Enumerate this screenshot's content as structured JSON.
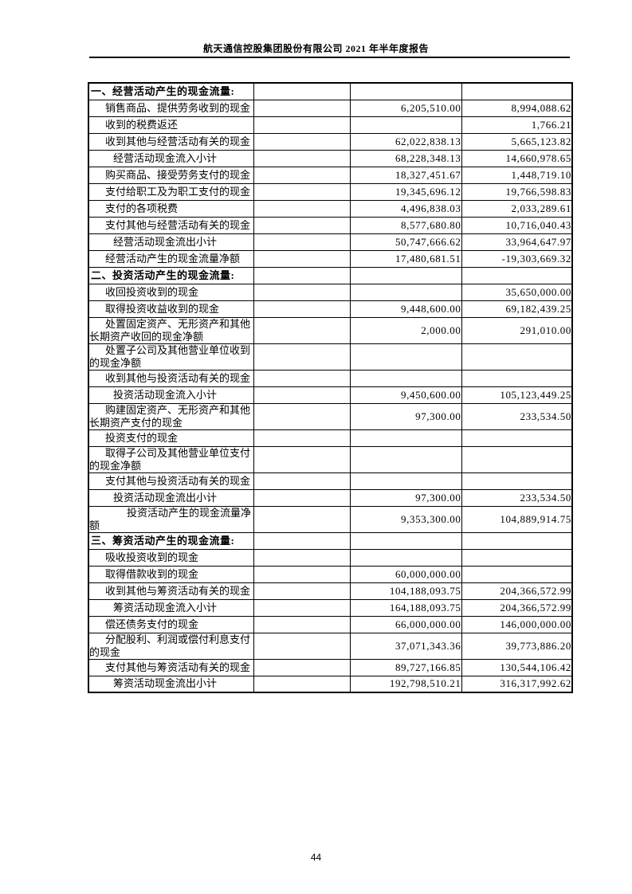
{
  "header": {
    "title": "航天通信控股集团股份有限公司 2021 年半年度报告"
  },
  "footer": {
    "page_number": "44"
  },
  "table": {
    "rows": [
      {
        "type": "section",
        "label": "一、经营活动产生的现金流量:",
        "note": "",
        "current": "",
        "prior": ""
      },
      {
        "type": "item",
        "label": "销售商品、提供劳务收到的现金",
        "note": "",
        "current": "6,205,510.00",
        "prior": "8,994,088.62"
      },
      {
        "type": "item",
        "label": "收到的税费返还",
        "note": "",
        "current": "",
        "prior": "1,766.21"
      },
      {
        "type": "item",
        "label": "收到其他与经营活动有关的现金",
        "note": "",
        "current": "62,022,838.13",
        "prior": "5,665,123.82"
      },
      {
        "type": "subtotal",
        "label": "经营活动现金流入小计",
        "note": "",
        "current": "68,228,348.13",
        "prior": "14,660,978.65"
      },
      {
        "type": "item",
        "label": "购买商品、接受劳务支付的现金",
        "note": "",
        "current": "18,327,451.67",
        "prior": "1,448,719.10"
      },
      {
        "type": "item",
        "label": "支付给职工及为职工支付的现金",
        "note": "",
        "current": "19,345,696.12",
        "prior": "19,766,598.83"
      },
      {
        "type": "item",
        "label": "支付的各项税费",
        "note": "",
        "current": "4,496,838.03",
        "prior": "2,033,289.61"
      },
      {
        "type": "item",
        "label": "支付其他与经营活动有关的现金",
        "note": "",
        "current": "8,577,680.80",
        "prior": "10,716,040.43"
      },
      {
        "type": "subtotal",
        "label": "经营活动现金流出小计",
        "note": "",
        "current": "50,747,666.62",
        "prior": "33,964,647.97"
      },
      {
        "type": "item",
        "label": "经营活动产生的现金流量净额",
        "note": "",
        "current": "17,480,681.51",
        "prior": "-19,303,669.32"
      },
      {
        "type": "section",
        "label": "二、投资活动产生的现金流量:",
        "note": "",
        "current": "",
        "prior": ""
      },
      {
        "type": "item",
        "label": "收回投资收到的现金",
        "note": "",
        "current": "",
        "prior": "35,650,000.00"
      },
      {
        "type": "item",
        "label": "取得投资收益收到的现金",
        "note": "",
        "current": "9,448,600.00",
        "prior": "69,182,439.25"
      },
      {
        "type": "item",
        "label": "处置固定资产、无形资产和其他长期资产收回的现金净额",
        "note": "",
        "current": "2,000.00",
        "prior": "291,010.00"
      },
      {
        "type": "item",
        "label": "处置子公司及其他营业单位收到的现金净额",
        "note": "",
        "current": "",
        "prior": ""
      },
      {
        "type": "item",
        "label": "收到其他与投资活动有关的现金",
        "note": "",
        "current": "",
        "prior": ""
      },
      {
        "type": "subtotal",
        "label": "投资活动现金流入小计",
        "note": "",
        "current": "9,450,600.00",
        "prior": "105,123,449.25"
      },
      {
        "type": "item",
        "label": "购建固定资产、无形资产和其他长期资产支付的现金",
        "note": "",
        "current": "97,300.00",
        "prior": "233,534.50"
      },
      {
        "type": "item",
        "label": "投资支付的现金",
        "note": "",
        "current": "",
        "prior": ""
      },
      {
        "type": "item",
        "label": "取得子公司及其他营业单位支付的现金净额",
        "note": "",
        "current": "",
        "prior": ""
      },
      {
        "type": "item",
        "label": "支付其他与投资活动有关的现金",
        "note": "",
        "current": "",
        "prior": ""
      },
      {
        "type": "subtotal",
        "label": "投资活动现金流出小计",
        "note": "",
        "current": "97,300.00",
        "prior": "233,534.50"
      },
      {
        "type": "net",
        "label": "投资活动产生的现金流量净额",
        "note": "",
        "current": "9,353,300.00",
        "prior": "104,889,914.75"
      },
      {
        "type": "section",
        "label": "三、筹资活动产生的现金流量:",
        "note": "",
        "current": "",
        "prior": ""
      },
      {
        "type": "item",
        "label": "吸收投资收到的现金",
        "note": "",
        "current": "",
        "prior": ""
      },
      {
        "type": "item",
        "label": "取得借款收到的现金",
        "note": "",
        "current": "60,000,000.00",
        "prior": ""
      },
      {
        "type": "item",
        "label": "收到其他与筹资活动有关的现金",
        "note": "",
        "current": "104,188,093.75",
        "prior": "204,366,572.99"
      },
      {
        "type": "subtotal",
        "label": "筹资活动现金流入小计",
        "note": "",
        "current": "164,188,093.75",
        "prior": "204,366,572.99"
      },
      {
        "type": "item",
        "label": "偿还债务支付的现金",
        "note": "",
        "current": "66,000,000.00",
        "prior": "146,000,000.00"
      },
      {
        "type": "item",
        "label": "分配股利、利润或偿付利息支付的现金",
        "note": "",
        "current": "37,071,343.36",
        "prior": "39,773,886.20"
      },
      {
        "type": "item",
        "label": "支付其他与筹资活动有关的现金",
        "note": "",
        "current": "89,727,166.85",
        "prior": "130,544,106.42"
      },
      {
        "type": "subtotal",
        "label": "筹资活动现金流出小计",
        "note": "",
        "current": "192,798,510.21",
        "prior": "316,317,992.62"
      }
    ]
  }
}
